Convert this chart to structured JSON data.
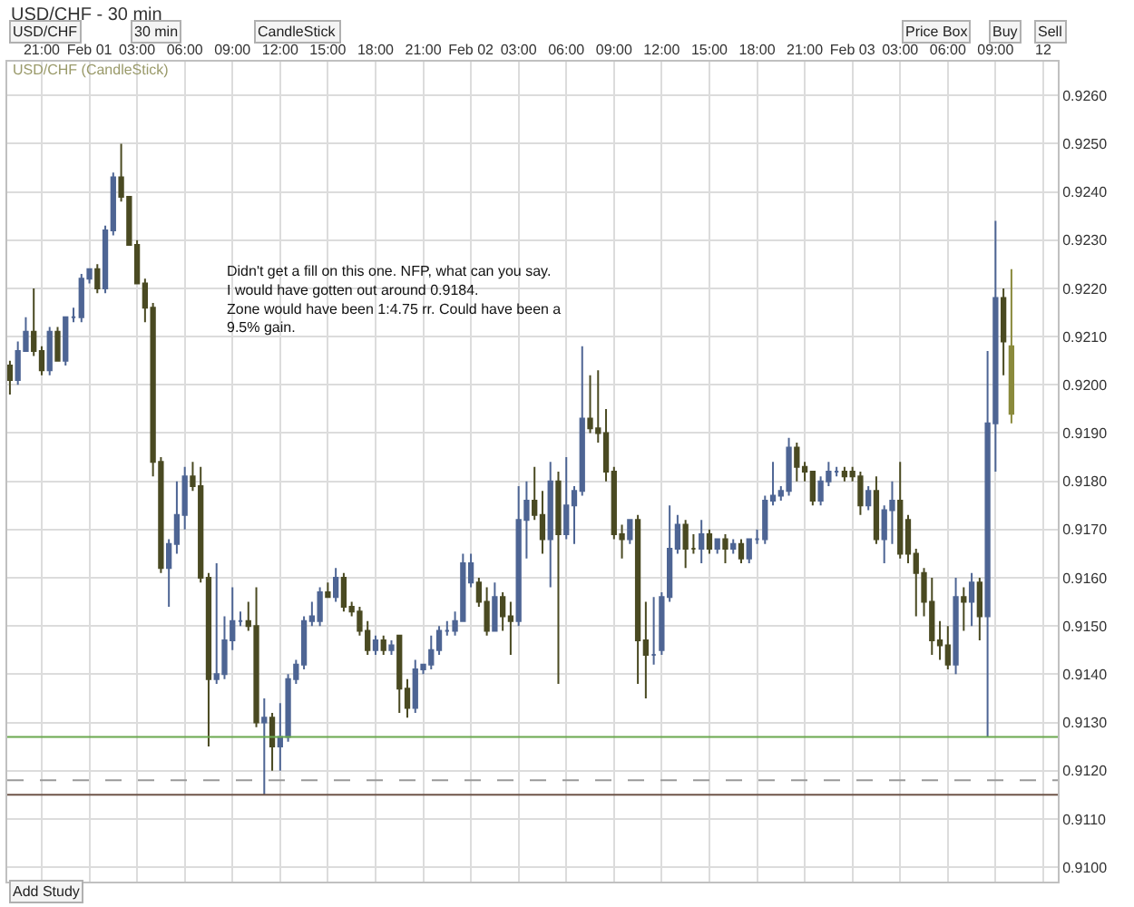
{
  "chart_data": {
    "type": "candlestick",
    "title": "USD/CHF - 30 min",
    "subtitle": "USD/CHF (CandleStick)",
    "annotations": [
      "Didn't get a fill on this one. NFP, what can you say.\nI would have gotten out around 0.9184.\nZone would have been 1:4.75 rr. Could have been a\n9.5% gain.",
      "USD/CHF",
      "30 min",
      "CandleStick",
      "Price Box",
      "Buy",
      "Sell",
      "Add Study"
    ],
    "colors": [
      "#4a4a22",
      "#4e6594",
      "#4e6594",
      "#4a4a22",
      "#4a4a22",
      "#4e6594",
      "#4a4a22",
      "#4e6594",
      "#4e6594",
      "#4e6594",
      "#4e6594",
      "#4a4a22",
      "#4e6594",
      "#4e6594",
      "#4a4a22",
      "#4a4a22",
      "#4a4a22",
      "#4a4a22",
      "#4a4a22",
      "#4a4a22",
      "#4e6594",
      "#4e6594",
      "#4e6594",
      "#4a4a22",
      "#4a4a22",
      "#4a4a22",
      "#4e6594",
      "#4e6594",
      "#4e6594",
      "#4e6594",
      "#4a4a22",
      "#4a4a22",
      "#4e6594",
      "#4a4a22",
      "#4e6594",
      "#4e6594",
      "#4e6594",
      "#4e6594",
      "#4e6594",
      "#4e6594",
      "#4a4a22",
      "#4e6594",
      "#4a4a22",
      "#4a4a22",
      "#4a4a22",
      "#4a4a22",
      "#4e6594",
      "#4a4a22",
      "#4e6594",
      "#4a4a22",
      "#4a4a22",
      "#4e6594",
      "#4e6594",
      "#4e6594",
      "#4e6594",
      "#4e6594",
      "#4e6594",
      "#4e6594",
      "#4e6594",
      "#4a4a22",
      "#4a4a22",
      "#4e6594",
      "#4a4a22",
      "#4a4a22",
      "#4e6594",
      "#4e6594",
      "#4a4a22",
      "#4a4a22",
      "#4e6594",
      "#4a4a22",
      "#4e6594",
      "#4e6594",
      "#4e6594",
      "#4a4a22",
      "#4a4a22",
      "#4a4a22",
      "#4a4a22",
      "#4a4a22",
      "#4e6594",
      "#4a4a22",
      "#4a4a22",
      "#4e6594",
      "#4e6594",
      "#4e6594",
      "#4e6594",
      "#4a4a22",
      "#4a4a22",
      "#4e6594",
      "#4a4a22",
      "#4e6594",
      "#4a4a22",
      "#4e6594",
      "#4a4a22",
      "#4e6594",
      "#4e6594",
      "#4e6594",
      "#4e6594",
      "#4e6594",
      "#4e6594",
      "#4a4a22",
      "#4a4a22",
      "#4a4a22",
      "#4e6594",
      "#4e6594",
      "#4e6594",
      "#4a4a22",
      "#4a4a22",
      "#4a4a22",
      "#4e6594",
      "#4a4a22",
      "#4e6594",
      "#4e6594",
      "#4a4a22",
      "#4a4a22",
      "#4a4a22",
      "#4a4a22",
      "#4a4a22",
      "#4a4a22",
      "#4a4a22",
      "#4e6594",
      "#4a4a22",
      "#4e6594",
      "#4a4a22",
      "#4e6594",
      "#4e6594",
      "#4a4a22",
      "#8a8a3c"
    ],
    "x": [
      "--01-31T19:00",
      "--01-31T19:30",
      "--01-31T20:00",
      "--01-31T20:30",
      "--01-31T21:00",
      "--01-31T21:30",
      "--01-31T22:00",
      "--01-31T22:30",
      "--01-31T23:00",
      "--01-31T23:30",
      "--02-01T00:00",
      "--02-01T00:30",
      "--02-01T01:00",
      "--02-01T01:30",
      "--02-01T02:00",
      "--02-01T02:30",
      "--02-01T03:00",
      "--02-01T03:30",
      "--02-01T04:00",
      "--02-01T04:30",
      "--02-01T05:00",
      "--02-01T05:30",
      "--02-01T06:00",
      "--02-01T06:30",
      "--02-01T07:00",
      "--02-01T07:30",
      "--02-01T08:00",
      "--02-01T08:30",
      "--02-01T09:00",
      "--02-01T09:30",
      "--02-01T10:00",
      "--02-01T10:30",
      "--02-01T11:00",
      "--02-01T11:30",
      "--02-01T12:00",
      "--02-01T12:30",
      "--02-01T13:00",
      "--02-01T13:30",
      "--02-01T14:00",
      "--02-01T14:30",
      "--02-01T15:00",
      "--02-01T15:30",
      "--02-01T16:00",
      "--02-01T16:30",
      "--02-01T17:00",
      "--02-01T17:30",
      "--02-01T18:00",
      "--02-01T18:30",
      "--02-01T19:00",
      "--02-01T19:30",
      "--02-01T20:00",
      "--02-01T20:30",
      "--02-01T21:00",
      "--02-01T21:30",
      "--02-01T22:00",
      "--02-01T22:30",
      "--02-01T23:00",
      "--02-01T23:30",
      "--02-02T00:00",
      "--02-02T00:30",
      "--02-02T01:00",
      "--02-02T01:30",
      "--02-02T02:00",
      "--02-02T02:30",
      "--02-02T03:00",
      "--02-02T03:30",
      "--02-02T04:00",
      "--02-02T04:30",
      "--02-02T05:00",
      "--02-02T05:30",
      "--02-02T06:00",
      "--02-02T06:30",
      "--02-02T07:00",
      "--02-02T07:30",
      "--02-02T08:00",
      "--02-02T08:30",
      "--02-02T09:00",
      "--02-02T09:30",
      "--02-02T10:00",
      "--02-02T10:30",
      "--02-02T11:00",
      "--02-02T11:30",
      "--02-02T12:00",
      "--02-02T12:30",
      "--02-02T13:00",
      "--02-02T13:30",
      "--02-02T14:00",
      "--02-02T14:30",
      "--02-02T15:00",
      "--02-02T15:30",
      "--02-02T16:00",
      "--02-02T16:30",
      "--02-02T17:00",
      "--02-02T17:30",
      "--02-02T18:00",
      "--02-02T18:30",
      "--02-02T19:00",
      "--02-02T19:30",
      "--02-02T20:00",
      "--02-02T20:30",
      "--02-02T21:00",
      "--02-02T21:30",
      "--02-02T22:00",
      "--02-02T22:30",
      "--02-02T23:00",
      "--02-02T23:30",
      "--02-03T00:00",
      "--02-03T00:30",
      "--02-03T01:00",
      "--02-03T01:30",
      "--02-03T02:00",
      "--02-03T02:30",
      "--02-03T03:00",
      "--02-03T03:30",
      "--02-03T04:00",
      "--02-03T04:30",
      "--02-03T05:00",
      "--02-03T05:30",
      "--02-03T06:00",
      "--02-03T06:30",
      "--02-03T07:00",
      "--02-03T07:30",
      "--02-03T08:00",
      "--02-03T08:30",
      "--02-03T09:00",
      "--02-03T09:30",
      "--02-03T10:00"
    ],
    "ohlc": [
      [
        0.9204,
        0.9205,
        0.9198,
        0.9201
      ],
      [
        0.9201,
        0.9209,
        0.92,
        0.9207
      ],
      [
        0.9207,
        0.9214,
        0.9207,
        0.9211
      ],
      [
        0.9211,
        0.922,
        0.9206,
        0.9207
      ],
      [
        0.9207,
        0.9208,
        0.9202,
        0.9203
      ],
      [
        0.9203,
        0.9212,
        0.9202,
        0.9211
      ],
      [
        0.9211,
        0.9212,
        0.9205,
        0.9205
      ],
      [
        0.9205,
        0.9214,
        0.9204,
        0.9214
      ],
      [
        0.9214,
        0.9216,
        0.9213,
        0.9214
      ],
      [
        0.9214,
        0.9223,
        0.9213,
        0.9222
      ],
      [
        0.9222,
        0.9224,
        0.9221,
        0.9224
      ],
      [
        0.9224,
        0.9225,
        0.9219,
        0.922
      ],
      [
        0.922,
        0.9233,
        0.9219,
        0.9232
      ],
      [
        0.9232,
        0.9244,
        0.9231,
        0.9243
      ],
      [
        0.9243,
        0.925,
        0.9238,
        0.9239
      ],
      [
        0.9239,
        0.9239,
        0.9229,
        0.9229
      ],
      [
        0.9229,
        0.923,
        0.9221,
        0.9221
      ],
      [
        0.9221,
        0.9222,
        0.9213,
        0.9216
      ],
      [
        0.9216,
        0.9217,
        0.9181,
        0.9184
      ],
      [
        0.9184,
        0.9185,
        0.9161,
        0.9162
      ],
      [
        0.9162,
        0.9168,
        0.9154,
        0.9167
      ],
      [
        0.9167,
        0.918,
        0.9165,
        0.9173
      ],
      [
        0.9173,
        0.9183,
        0.917,
        0.9181
      ],
      [
        0.9181,
        0.9184,
        0.9178,
        0.9179
      ],
      [
        0.9179,
        0.9183,
        0.9159,
        0.916
      ],
      [
        0.916,
        0.9161,
        0.9125,
        0.9139
      ],
      [
        0.9139,
        0.9163,
        0.9138,
        0.914
      ],
      [
        0.914,
        0.9152,
        0.9139,
        0.9147
      ],
      [
        0.9147,
        0.9158,
        0.9145,
        0.9151
      ],
      [
        0.9151,
        0.9153,
        0.915,
        0.9151
      ],
      [
        0.9151,
        0.9155,
        0.9149,
        0.915
      ],
      [
        0.915,
        0.9158,
        0.9129,
        0.913
      ],
      [
        0.913,
        0.9135,
        0.9115,
        0.9131
      ],
      [
        0.9131,
        0.9132,
        0.912,
        0.9125
      ],
      [
        0.9125,
        0.9134,
        0.912,
        0.9127
      ],
      [
        0.9127,
        0.914,
        0.9126,
        0.9139
      ],
      [
        0.9139,
        0.9143,
        0.9138,
        0.9142
      ],
      [
        0.9142,
        0.9152,
        0.9141,
        0.9151
      ],
      [
        0.9151,
        0.9155,
        0.915,
        0.9152
      ],
      [
        0.9151,
        0.9158,
        0.915,
        0.9157
      ],
      [
        0.9157,
        0.9159,
        0.9156,
        0.9156
      ],
      [
        0.9156,
        0.9162,
        0.9155,
        0.916
      ],
      [
        0.916,
        0.9161,
        0.9153,
        0.9154
      ],
      [
        0.9154,
        0.9155,
        0.9152,
        0.9153
      ],
      [
        0.9153,
        0.9154,
        0.9148,
        0.9149
      ],
      [
        0.9149,
        0.9151,
        0.9144,
        0.9145
      ],
      [
        0.9145,
        0.9148,
        0.9144,
        0.9147
      ],
      [
        0.9147,
        0.9148,
        0.9144,
        0.9145
      ],
      [
        0.9145,
        0.9147,
        0.9144,
        0.9146
      ],
      [
        0.9148,
        0.9148,
        0.9132,
        0.9137
      ],
      [
        0.9137,
        0.9139,
        0.9131,
        0.9133
      ],
      [
        0.9133,
        0.9143,
        0.9132,
        0.9141
      ],
      [
        0.9141,
        0.9142,
        0.914,
        0.9142
      ],
      [
        0.9142,
        0.9148,
        0.9141,
        0.9145
      ],
      [
        0.9145,
        0.915,
        0.9144,
        0.9149
      ],
      [
        0.9149,
        0.9151,
        0.9148,
        0.9149
      ],
      [
        0.9149,
        0.9153,
        0.9148,
        0.9151
      ],
      [
        0.9151,
        0.9165,
        0.9151,
        0.9163
      ],
      [
        0.9159,
        0.9165,
        0.9158,
        0.9163
      ],
      [
        0.9159,
        0.916,
        0.9154,
        0.9155
      ],
      [
        0.9155,
        0.9158,
        0.9148,
        0.9149
      ],
      [
        0.9149,
        0.9159,
        0.9149,
        0.9156
      ],
      [
        0.9156,
        0.9157,
        0.9149,
        0.9152
      ],
      [
        0.9152,
        0.9155,
        0.9144,
        0.9151
      ],
      [
        0.9151,
        0.9179,
        0.915,
        0.9172
      ],
      [
        0.9172,
        0.918,
        0.9164,
        0.9176
      ],
      [
        0.9176,
        0.9183,
        0.9172,
        0.9173
      ],
      [
        0.9173,
        0.9178,
        0.9165,
        0.9168
      ],
      [
        0.9168,
        0.9184,
        0.9158,
        0.918
      ],
      [
        0.918,
        0.9182,
        0.9138,
        0.9169
      ],
      [
        0.9169,
        0.9185,
        0.9168,
        0.9175
      ],
      [
        0.9175,
        0.9179,
        0.9167,
        0.9178
      ],
      [
        0.9178,
        0.9208,
        0.9177,
        0.9193
      ],
      [
        0.9193,
        0.9202,
        0.919,
        0.9191
      ],
      [
        0.9191,
        0.9203,
        0.9188,
        0.919
      ],
      [
        0.919,
        0.9195,
        0.918,
        0.9182
      ],
      [
        0.9182,
        0.9183,
        0.9168,
        0.9169
      ],
      [
        0.9169,
        0.9171,
        0.9164,
        0.9168
      ],
      [
        0.9168,
        0.9172,
        0.9167,
        0.9172
      ],
      [
        0.9172,
        0.9173,
        0.9138,
        0.9147
      ],
      [
        0.9147,
        0.9155,
        0.9135,
        0.9144
      ],
      [
        0.9144,
        0.9156,
        0.9142,
        0.9144
      ],
      [
        0.9145,
        0.9157,
        0.9144,
        0.9156
      ],
      [
        0.9156,
        0.9175,
        0.9155,
        0.9166
      ],
      [
        0.9166,
        0.9173,
        0.9165,
        0.9171
      ],
      [
        0.9171,
        0.9172,
        0.9162,
        0.9166
      ],
      [
        0.9166,
        0.9169,
        0.9165,
        0.9166
      ],
      [
        0.9166,
        0.9172,
        0.9163,
        0.9169
      ],
      [
        0.9169,
        0.917,
        0.9165,
        0.9166
      ],
      [
        0.9166,
        0.9168,
        0.9165,
        0.9168
      ],
      [
        0.9168,
        0.9169,
        0.9163,
        0.9166
      ],
      [
        0.9166,
        0.9168,
        0.9165,
        0.9167
      ],
      [
        0.9167,
        0.9168,
        0.9163,
        0.9164
      ],
      [
        0.9164,
        0.9168,
        0.9163,
        0.9168
      ],
      [
        0.9168,
        0.917,
        0.9167,
        0.9168
      ],
      [
        0.9168,
        0.9177,
        0.9167,
        0.9176
      ],
      [
        0.9176,
        0.9184,
        0.9175,
        0.9177
      ],
      [
        0.9177,
        0.9179,
        0.9176,
        0.9178
      ],
      [
        0.9178,
        0.9189,
        0.9177,
        0.9187
      ],
      [
        0.9187,
        0.9188,
        0.918,
        0.9183
      ],
      [
        0.9183,
        0.9184,
        0.918,
        0.9182
      ],
      [
        0.9182,
        0.9182,
        0.9175,
        0.9176
      ],
      [
        0.9176,
        0.9181,
        0.9175,
        0.918
      ],
      [
        0.918,
        0.9184,
        0.9179,
        0.9182
      ],
      [
        0.9182,
        0.9183,
        0.9181,
        0.9182
      ],
      [
        0.9182,
        0.9183,
        0.918,
        0.9181
      ],
      [
        0.9182,
        0.9183,
        0.918,
        0.9181
      ],
      [
        0.9181,
        0.9182,
        0.9173,
        0.9175
      ],
      [
        0.9175,
        0.9179,
        0.9174,
        0.9178
      ],
      [
        0.9178,
        0.9181,
        0.9167,
        0.9168
      ],
      [
        0.9168,
        0.9175,
        0.9163,
        0.9174
      ],
      [
        0.9174,
        0.918,
        0.9167,
        0.9176
      ],
      [
        0.9176,
        0.9184,
        0.9164,
        0.9165
      ],
      [
        0.9172,
        0.9173,
        0.9163,
        0.9165
      ],
      [
        0.9165,
        0.9166,
        0.9152,
        0.9161
      ],
      [
        0.9161,
        0.9162,
        0.9152,
        0.9155
      ],
      [
        0.9155,
        0.916,
        0.9144,
        0.9147
      ],
      [
        0.9147,
        0.9151,
        0.9143,
        0.9146
      ],
      [
        0.9146,
        0.915,
        0.9141,
        0.9142
      ],
      [
        0.9142,
        0.916,
        0.914,
        0.9156
      ],
      [
        0.9156,
        0.9158,
        0.9149,
        0.9155
      ],
      [
        0.9155,
        0.9161,
        0.915,
        0.9159
      ],
      [
        0.9159,
        0.916,
        0.9147,
        0.9152
      ],
      [
        0.9152,
        0.9207,
        0.9127,
        0.9192
      ],
      [
        0.9192,
        0.9234,
        0.9182,
        0.9218
      ],
      [
        0.9218,
        0.922,
        0.9202,
        0.9209
      ],
      [
        0.9208,
        0.9224,
        0.9192,
        0.9194
      ]
    ],
    "xlim": [
      "--01-31T18:50",
      "--02-03T12:55"
    ],
    "xticks": [
      {
        "value": "--01-31T21:00",
        "label": "21:00"
      },
      {
        "value": "--02-01T00:00",
        "label": "Feb 01"
      },
      {
        "value": "--02-01T03:00",
        "label": "03:00"
      },
      {
        "value": "--02-01T06:00",
        "label": "06:00"
      },
      {
        "value": "--02-01T09:00",
        "label": "09:00"
      },
      {
        "value": "--02-01T12:00",
        "label": "12:00"
      },
      {
        "value": "--02-01T15:00",
        "label": "15:00"
      },
      {
        "value": "--02-01T18:00",
        "label": "18:00"
      },
      {
        "value": "--02-01T21:00",
        "label": "21:00"
      },
      {
        "value": "--02-02T00:00",
        "label": "Feb 02"
      },
      {
        "value": "--02-02T03:00",
        "label": "03:00"
      },
      {
        "value": "--02-02T06:00",
        "label": "06:00"
      },
      {
        "value": "--02-02T09:00",
        "label": "09:00"
      },
      {
        "value": "--02-02T12:00",
        "label": "12:00"
      },
      {
        "value": "--02-02T15:00",
        "label": "15:00"
      },
      {
        "value": "--02-02T18:00",
        "label": "18:00"
      },
      {
        "value": "--02-02T21:00",
        "label": "21:00"
      },
      {
        "value": "--02-03T00:00",
        "label": "Feb 03"
      },
      {
        "value": "--02-03T03:00",
        "label": "03:00"
      },
      {
        "value": "--02-03T06:00",
        "label": "06:00"
      },
      {
        "value": "--02-03T09:00",
        "label": "09:00"
      },
      {
        "value": "--02-03T12:00",
        "label": "12"
      }
    ],
    "ylim": [
      0.9097,
      0.9267
    ],
    "yticks": [
      {
        "value": 0.91,
        "label": "0.9100"
      },
      {
        "value": 0.911,
        "label": "0.9110"
      },
      {
        "value": 0.912,
        "label": "0.9120"
      },
      {
        "value": 0.913,
        "label": "0.9130"
      },
      {
        "value": 0.914,
        "label": "0.9140"
      },
      {
        "value": 0.915,
        "label": "0.9150"
      },
      {
        "value": 0.916,
        "label": "0.9160"
      },
      {
        "value": 0.917,
        "label": "0.9170"
      },
      {
        "value": 0.918,
        "label": "0.9180"
      },
      {
        "value": 0.919,
        "label": "0.9190"
      },
      {
        "value": 0.92,
        "label": "0.9200"
      },
      {
        "value": 0.921,
        "label": "0.9210"
      },
      {
        "value": 0.922,
        "label": "0.9220"
      },
      {
        "value": 0.923,
        "label": "0.9230"
      },
      {
        "value": 0.924,
        "label": "0.9240"
      },
      {
        "value": 0.925,
        "label": "0.9250"
      },
      {
        "value": 0.926,
        "label": "0.9260"
      }
    ],
    "ref_lines": [
      {
        "axis": "y",
        "value": 0.9127,
        "color": "#6aa84f",
        "line_style": "solid"
      },
      {
        "axis": "y",
        "value": 0.9118,
        "color": "#9a9a9a",
        "line_style": "dashed"
      },
      {
        "axis": "y",
        "value": 0.9115,
        "color": "#6e5448",
        "line_style": "solid"
      }
    ],
    "grid": true
  }
}
